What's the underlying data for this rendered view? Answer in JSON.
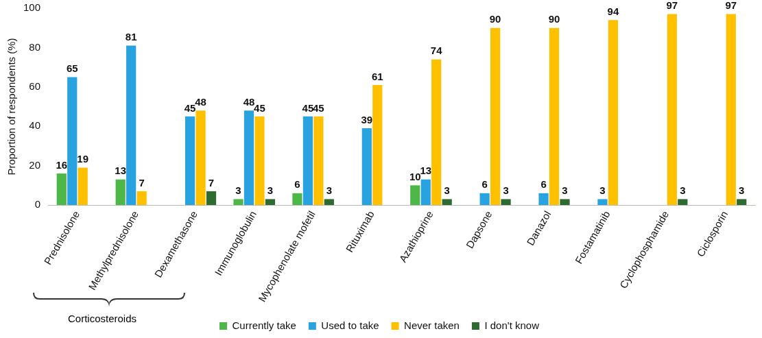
{
  "chart_data": {
    "type": "bar",
    "ylabel": "Proportion of respondents (%)",
    "categories": [
      "Prednisolone",
      "Methylprednisolone",
      "Dexamethasone",
      "Immunoglobulin",
      "Mycophenolate mofetil",
      "Rituximab",
      "Azathioprine",
      "Dapsone",
      "Danazol",
      "Fostamatinib",
      "Cyclophosphamide",
      "Ciclosporin"
    ],
    "series": [
      {
        "name": "Currently take",
        "color": "#4db848",
        "values": [
          16,
          13,
          null,
          3,
          6,
          null,
          10,
          null,
          null,
          null,
          null,
          null
        ]
      },
      {
        "name": "Used to take",
        "color": "#29a3e0",
        "values": [
          65,
          81,
          45,
          48,
          45,
          39,
          13,
          6,
          6,
          3,
          null,
          null
        ]
      },
      {
        "name": "Never taken",
        "color": "#ffc000",
        "values": [
          19,
          7,
          48,
          45,
          45,
          61,
          74,
          90,
          90,
          94,
          97,
          97
        ]
      },
      {
        "name": "I don't know",
        "color": "#2e6b30",
        "values": [
          null,
          null,
          7,
          3,
          3,
          null,
          3,
          3,
          3,
          null,
          3,
          3
        ]
      }
    ],
    "ylim": [
      0,
      100
    ],
    "yticks": [
      0,
      20,
      40,
      60,
      80,
      100
    ],
    "grid": false,
    "legend": "bottom",
    "data_labels": true,
    "annotations": [
      "Corticosteroids"
    ]
  }
}
